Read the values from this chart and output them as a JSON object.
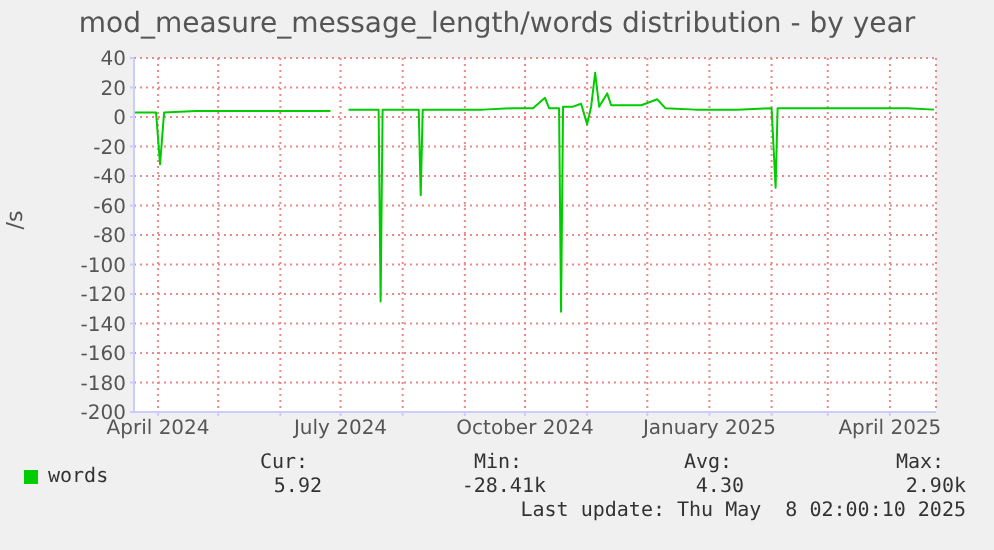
{
  "chart_data": {
    "type": "line",
    "title": "mod_measure_message_length/words distribution - by year",
    "ylabel": "/s",
    "x": [
      "2024-03-20",
      "2024-03-31",
      "2024-04-02",
      "2024-04-04",
      "2024-04-20",
      "2024-05-10",
      "2024-05-30",
      "2024-06-15",
      "2024-06-26",
      "2024-06-27",
      "2024-07-05",
      "2024-07-15",
      "2024-07-20",
      "2024-07-21",
      "2024-07-22",
      "2024-08-01",
      "2024-08-09",
      "2024-08-10",
      "2024-08-11",
      "2024-08-25",
      "2024-09-10",
      "2024-09-25",
      "2024-10-05",
      "2024-10-11",
      "2024-10-13",
      "2024-10-18",
      "2024-10-19",
      "2024-10-20",
      "2024-10-25",
      "2024-10-29",
      "2024-11-01",
      "2024-11-03",
      "2024-11-05",
      "2024-11-07",
      "2024-11-11",
      "2024-11-13",
      "2024-11-20",
      "2024-11-28",
      "2024-12-06",
      "2024-12-10",
      "2024-12-25",
      "2025-01-15",
      "2025-02-01",
      "2025-02-03",
      "2025-02-04",
      "2025-02-20",
      "2025-03-10",
      "2025-03-25",
      "2025-04-10",
      "2025-04-23"
    ],
    "series": [
      {
        "name": "words",
        "color": "#00cc00",
        "values": [
          3,
          3,
          -32,
          3,
          4,
          4,
          4,
          4,
          4,
          null,
          5,
          5,
          5,
          -125,
          5,
          5,
          5,
          -53,
          5,
          5,
          5,
          6,
          6,
          13,
          6,
          6,
          -132,
          7,
          7,
          9,
          -5,
          7,
          30,
          7,
          16,
          8,
          8,
          8,
          12,
          6,
          5,
          5,
          6,
          -48,
          6,
          6,
          6,
          6,
          6,
          5
        ]
      }
    ],
    "xlim": [
      "2024-03-20",
      "2025-04-24"
    ],
    "xticks": [
      {
        "value": "2024-04-01",
        "label": "April 2024"
      },
      {
        "value": "2024-05-01",
        "label": null
      },
      {
        "value": "2024-06-01",
        "label": null
      },
      {
        "value": "2024-07-01",
        "label": "July 2024"
      },
      {
        "value": "2024-08-01",
        "label": null
      },
      {
        "value": "2024-09-01",
        "label": null
      },
      {
        "value": "2024-10-01",
        "label": "October 2024"
      },
      {
        "value": "2024-11-01",
        "label": null
      },
      {
        "value": "2024-12-01",
        "label": null
      },
      {
        "value": "2025-01-01",
        "label": "January 2025"
      },
      {
        "value": "2025-02-01",
        "label": null
      },
      {
        "value": "2025-03-01",
        "label": null
      },
      {
        "value": "2025-04-01",
        "label": "April 2025"
      }
    ],
    "ylim": [
      -200,
      40
    ],
    "yticks": [
      -200,
      -180,
      -160,
      -140,
      -120,
      -100,
      -80,
      -60,
      -40,
      -20,
      0,
      20,
      40
    ],
    "grid": true,
    "legend": "bottom left",
    "marker": "none",
    "line_style": "solid",
    "annotations": [
      "Cur:",
      "Min:",
      "Avg:",
      "Max:",
      "5.92",
      "-28.41k",
      "4.30",
      "2.90k",
      "Last update: Thu May  8 02:00:10 2025"
    ]
  }
}
